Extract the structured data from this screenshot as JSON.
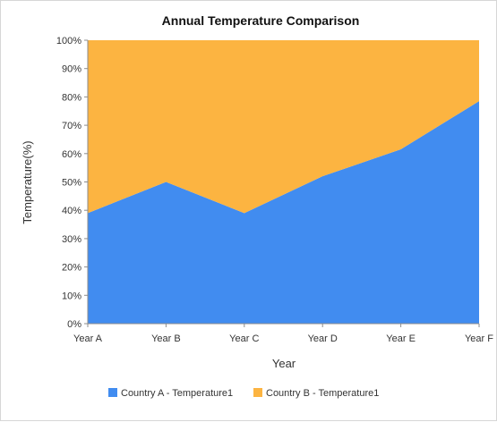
{
  "chart_data": {
    "type": "area",
    "stacked_percent": true,
    "title": "Annual Temperature Comparison",
    "xlabel": "Year",
    "ylabel": "Temperature(%)",
    "ylim": [
      0,
      100
    ],
    "y_ticks": [
      "0%",
      "10%",
      "20%",
      "30%",
      "40%",
      "50%",
      "60%",
      "70%",
      "80%",
      "90%",
      "100%"
    ],
    "categories": [
      "Year A",
      "Year B",
      "Year C",
      "Year D",
      "Year E",
      "Year F"
    ],
    "series": [
      {
        "name": "Country A - Temperature1",
        "color": "#418CF0",
        "values": [
          39,
          50,
          39,
          52,
          61.5,
          78.5
        ]
      },
      {
        "name": "Country B - Temperature1",
        "color": "#FCB441",
        "values": [
          61,
          50,
          61,
          48,
          38.5,
          21.5
        ]
      }
    ],
    "legend_position": "bottom"
  }
}
